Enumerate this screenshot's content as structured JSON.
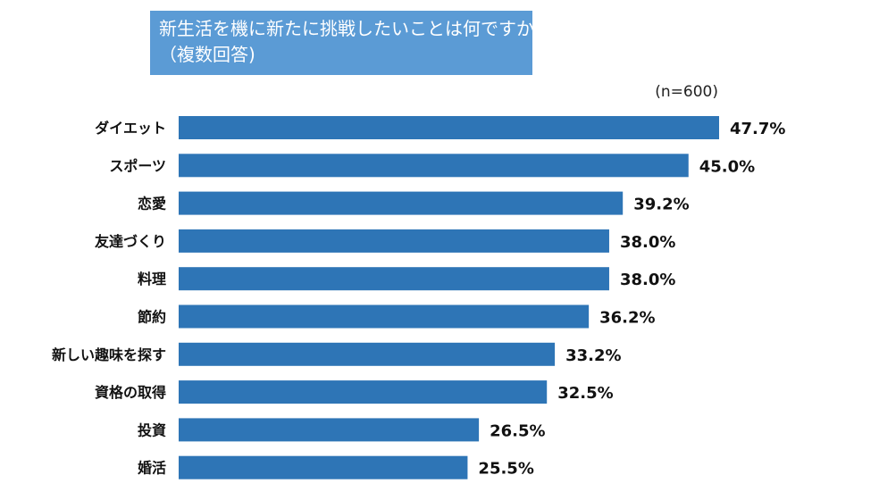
{
  "title": {
    "line1": "新生活を機に新たに挑戦したいことは何ですか？",
    "line2": "（複数回答)"
  },
  "note": "(n=600)",
  "colors": {
    "bar": "#2e75b6",
    "title_bg": "#5b9bd5",
    "text": "#111111"
  },
  "chart_data": {
    "type": "bar",
    "orientation": "horizontal",
    "categories": [
      "ダイエット",
      "スポーツ",
      "恋愛",
      "友達づくり",
      "料理",
      "節約",
      "新しい趣味を探す",
      "資格の取得",
      "投資",
      "婚活"
    ],
    "values": [
      47.7,
      45.0,
      39.2,
      38.0,
      38.0,
      36.2,
      33.2,
      32.5,
      26.5,
      25.5
    ],
    "value_labels": [
      "47.7%",
      "45.0%",
      "39.2%",
      "38.0%",
      "38.0%",
      "36.2%",
      "33.2%",
      "32.5%",
      "26.5%",
      "25.5%"
    ],
    "unit": "%",
    "grid": false,
    "legend": "none"
  }
}
